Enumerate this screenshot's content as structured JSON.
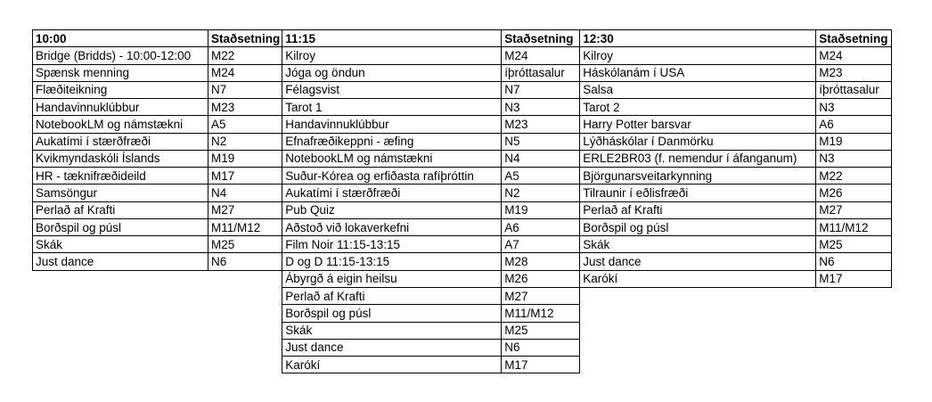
{
  "page": {
    "background_color": "#ffffff",
    "border_color": "#000000",
    "text_color": "#000000"
  },
  "schedule": {
    "sections": [
      {
        "time": "10:00",
        "location_header": "Staðsetning",
        "rows": [
          {
            "event": "Bridge (Bridds) - 10:00-12:00",
            "location": "M22"
          },
          {
            "event": "Spænsk menning",
            "location": "M24"
          },
          {
            "event": "Flæðiteikning",
            "location": "N7"
          },
          {
            "event": "Handavinnuklúbbur",
            "location": "M23"
          },
          {
            "event": "NotebookLM og námstækni",
            "location": "A5"
          },
          {
            "event": "Aukatími í stærðfræði",
            "location": "N2"
          },
          {
            "event": "Kvikmyndaskóli Íslands",
            "location": "M19"
          },
          {
            "event": "HR - tæknifræðideild",
            "location": "M17"
          },
          {
            "event": "Samsöngur",
            "location": "N4"
          },
          {
            "event": "Perlað af Krafti",
            "location": "M27"
          },
          {
            "event": "Borðspil og púsl",
            "location": "M11/M12"
          },
          {
            "event": "Skák",
            "location": "M25"
          },
          {
            "event": "Just dance",
            "location": "N6"
          }
        ]
      },
      {
        "time": "11:15",
        "location_header": "Staðsetning",
        "rows": [
          {
            "event": "Kilroy",
            "location": "M24"
          },
          {
            "event": "Jóga og öndun",
            "location": "íþróttasalur"
          },
          {
            "event": "Félagsvist",
            "location": "N7"
          },
          {
            "event": "Tarot 1",
            "location": "N3"
          },
          {
            "event": "Handavinnuklúbbur",
            "location": "M23"
          },
          {
            "event": "Efnafræðikeppni - æfing",
            "location": "N5"
          },
          {
            "event": "NotebookLM og námstækni",
            "location": "N4"
          },
          {
            "event": "Suður-Kórea og erfiðasta rafíþróttin",
            "location": "A5"
          },
          {
            "event": "Aukatími í stærðfræði",
            "location": "N2"
          },
          {
            "event": "Pub Quiz",
            "location": "M19"
          },
          {
            "event": "Aðstoð við lokaverkefni",
            "location": "A6"
          },
          {
            "event": "Film Noir 11:15-13:15",
            "location": "A7"
          },
          {
            "event": "D og D 11:15-13:15",
            "location": "M28"
          },
          {
            "event": "Ábyrgð á eigin heilsu",
            "location": "M26"
          },
          {
            "event": "Perlað af Krafti",
            "location": "M27"
          },
          {
            "event": "Borðspil og púsl",
            "location": "M11/M12"
          },
          {
            "event": "Skák",
            "location": "M25"
          },
          {
            "event": "Just dance",
            "location": "N6"
          },
          {
            "event": "Karókí",
            "location": "M17"
          }
        ]
      },
      {
        "time": "12:30",
        "location_header": "Staðsetning",
        "rows": [
          {
            "event": "Kilroy",
            "location": "M24"
          },
          {
            "event": "Háskólanám í USA",
            "location": "M23"
          },
          {
            "event": "Salsa",
            "location": "íþróttasalur"
          },
          {
            "event": "Tarot 2",
            "location": "N3"
          },
          {
            "event": "Harry Potter barsvar",
            "location": "A6"
          },
          {
            "event": "Lýðháskólar í Danmörku",
            "location": "M19"
          },
          {
            "event": "ERLE2BR03 (f. nemendur í áfanganum)",
            "location": "N3"
          },
          {
            "event": "Björgunarsveitarkynning",
            "location": "M22"
          },
          {
            "event": "Tilraunir í eðlisfræði",
            "location": "M26"
          },
          {
            "event": "Perlað af Krafti",
            "location": "M27"
          },
          {
            "event": "Borðspil og púsl",
            "location": "M11/M12"
          },
          {
            "event": "Skák",
            "location": "M25"
          },
          {
            "event": "Just dance",
            "location": "N6"
          },
          {
            "event": "Karókí",
            "location": "M17"
          }
        ]
      }
    ]
  }
}
